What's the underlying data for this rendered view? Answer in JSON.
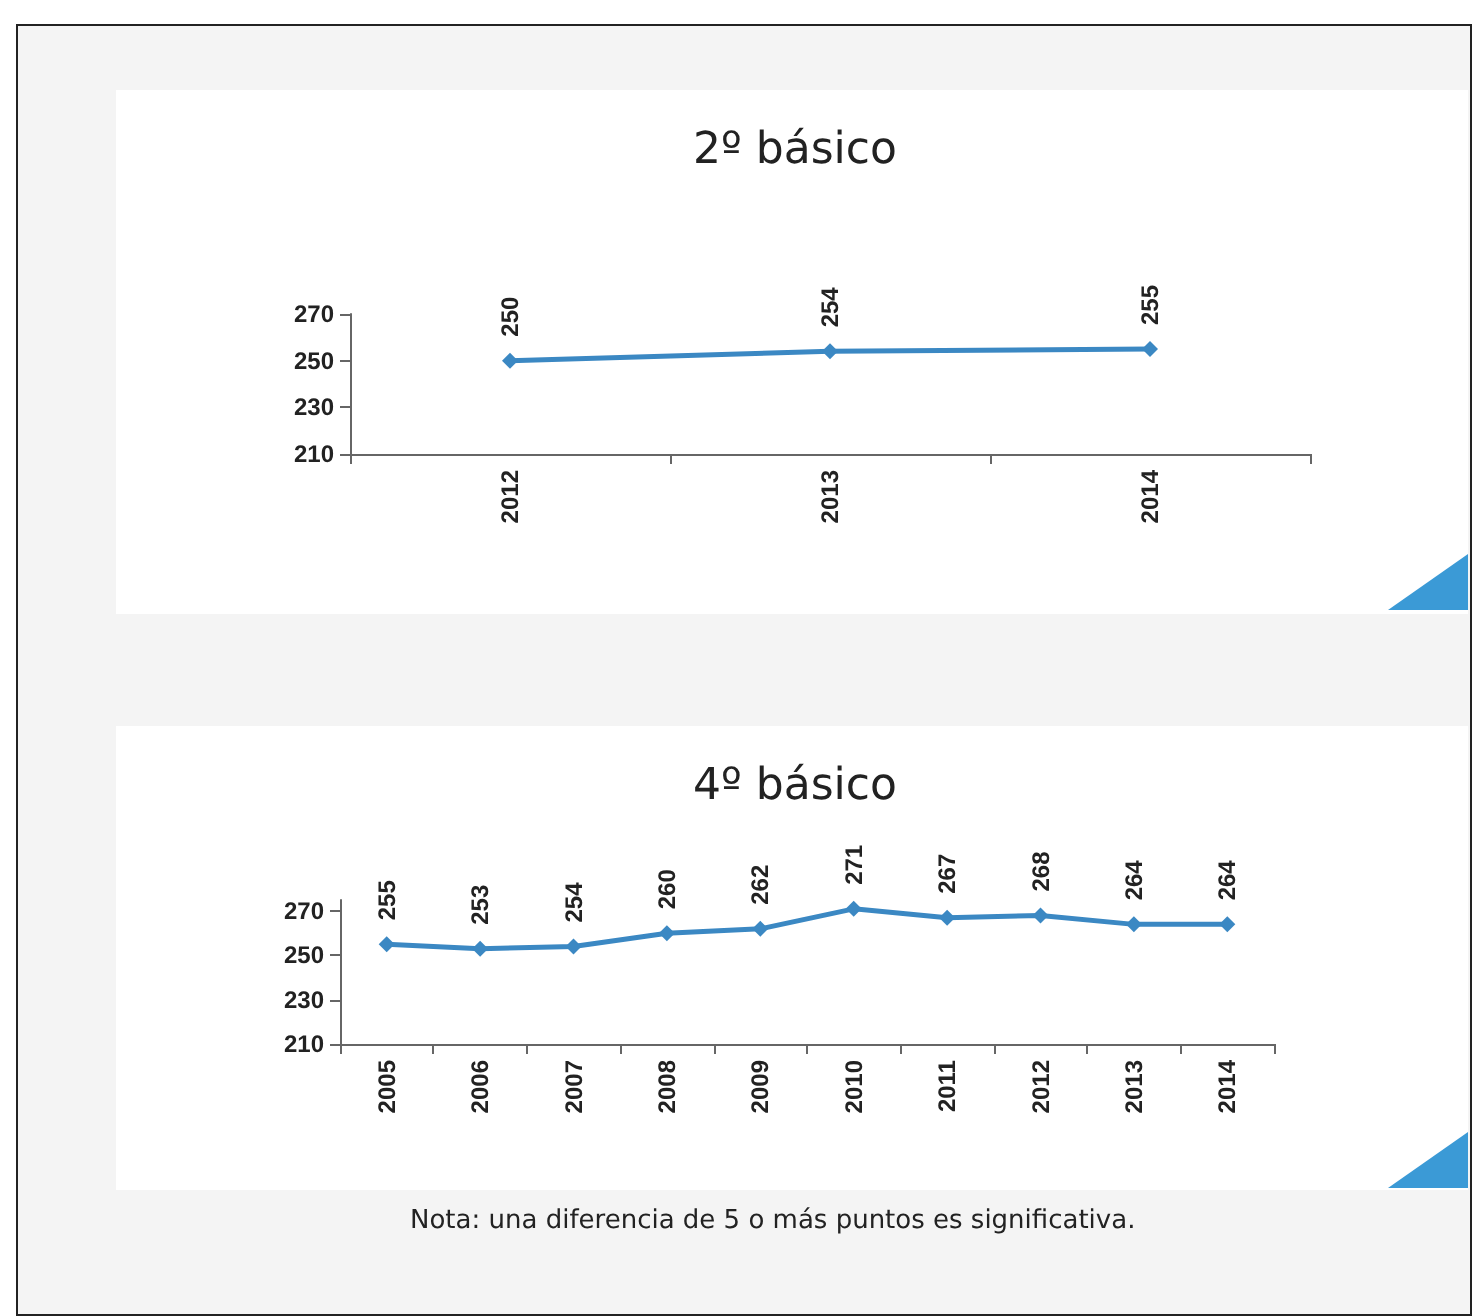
{
  "chart_data": [
    {
      "type": "line",
      "title": "2º básico",
      "categories": [
        "2012",
        "2013",
        "2014"
      ],
      "series": [
        {
          "color": "#3b88c3",
          "values": [
            250,
            254,
            255
          ]
        }
      ],
      "ylim": [
        210,
        270
      ],
      "yticks": [
        210,
        230,
        250,
        270
      ],
      "data_labels": true,
      "marker": "diamond"
    },
    {
      "type": "line",
      "title": "4º básico",
      "categories": [
        "2005",
        "2006",
        "2007",
        "2008",
        "2009",
        "2010",
        "2011",
        "2012",
        "2013",
        "2014"
      ],
      "series": [
        {
          "color": "#3b88c3",
          "values": [
            255,
            253,
            254,
            260,
            262,
            271,
            267,
            268,
            264,
            264
          ]
        }
      ],
      "ylim": [
        210,
        275
      ],
      "yticks": [
        210,
        230,
        250,
        270
      ],
      "data_labels": true,
      "marker": "diamond",
      "annotations": [
        "Nota: una diferencia de 5 o más puntos es significativa."
      ]
    }
  ]
}
